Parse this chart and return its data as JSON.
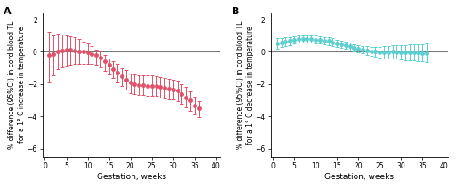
{
  "panel_A": {
    "label": "A",
    "ylabel": "% difference (95%CI) in cord blood TL\nfor a 1° C increase in temperature",
    "xlabel": "Gestation, weeks",
    "color": "#E05068",
    "x": [
      1,
      2,
      3,
      4,
      5,
      6,
      7,
      8,
      9,
      10,
      11,
      12,
      13,
      14,
      15,
      16,
      17,
      18,
      19,
      20,
      21,
      22,
      23,
      24,
      25,
      26,
      27,
      28,
      29,
      30,
      31,
      32,
      33,
      34,
      35,
      36
    ],
    "y": [
      -0.18,
      -0.12,
      0.05,
      0.1,
      0.12,
      0.12,
      0.1,
      0.05,
      0.0,
      -0.05,
      -0.12,
      -0.22,
      -0.38,
      -0.58,
      -0.82,
      -1.05,
      -1.28,
      -1.52,
      -1.72,
      -1.92,
      -2.02,
      -2.06,
      -2.07,
      -2.1,
      -2.1,
      -2.12,
      -2.2,
      -2.25,
      -2.3,
      -2.35,
      -2.42,
      -2.62,
      -2.82,
      -3.02,
      -3.32,
      -3.52
    ],
    "err_upper": [
      1.4,
      1.15,
      1.05,
      0.95,
      0.9,
      0.85,
      0.8,
      0.75,
      0.65,
      0.58,
      0.48,
      0.38,
      0.38,
      0.38,
      0.42,
      0.48,
      0.52,
      0.52,
      0.57,
      0.58,
      0.62,
      0.62,
      0.62,
      0.62,
      0.62,
      0.62,
      0.62,
      0.62,
      0.62,
      0.62,
      0.62,
      0.62,
      0.62,
      0.58,
      0.52,
      0.48
    ],
    "err_lower": [
      1.7,
      1.35,
      1.15,
      1.05,
      0.95,
      0.9,
      0.85,
      0.8,
      0.75,
      0.7,
      0.65,
      0.6,
      0.6,
      0.6,
      0.58,
      0.58,
      0.62,
      0.62,
      0.62,
      0.62,
      0.62,
      0.62,
      0.62,
      0.62,
      0.62,
      0.62,
      0.62,
      0.62,
      0.62,
      0.62,
      0.62,
      0.62,
      0.62,
      0.62,
      0.58,
      0.52
    ],
    "ylim": [
      -6.5,
      2.4
    ],
    "yticks": [
      -6.0,
      -4.0,
      -2.0,
      0.0,
      2.0
    ],
    "xticks": [
      0,
      5,
      10,
      15,
      20,
      25,
      30,
      35,
      40
    ],
    "xlim": [
      -0.5,
      41
    ]
  },
  "panel_B": {
    "label": "B",
    "ylabel": "% difference (95%CI) in cord blood TL\nfor a 1° C decrease in temperature",
    "xlabel": "Gestation, weeks",
    "color": "#5BCFCF",
    "x": [
      1,
      2,
      3,
      4,
      5,
      6,
      7,
      8,
      9,
      10,
      11,
      12,
      13,
      14,
      15,
      16,
      17,
      18,
      19,
      20,
      21,
      22,
      23,
      24,
      25,
      26,
      27,
      28,
      29,
      30,
      31,
      32,
      33,
      34,
      35,
      36
    ],
    "y": [
      0.52,
      0.58,
      0.63,
      0.68,
      0.73,
      0.78,
      0.8,
      0.8,
      0.78,
      0.76,
      0.73,
      0.7,
      0.66,
      0.6,
      0.53,
      0.46,
      0.4,
      0.33,
      0.26,
      0.2,
      0.13,
      0.08,
      0.03,
      0.0,
      -0.02,
      -0.03,
      -0.01,
      0.0,
      -0.01,
      -0.01,
      -0.04,
      -0.04,
      -0.04,
      -0.04,
      -0.06,
      -0.06
    ],
    "err_upper": [
      0.32,
      0.28,
      0.26,
      0.25,
      0.23,
      0.23,
      0.23,
      0.23,
      0.23,
      0.23,
      0.23,
      0.23,
      0.23,
      0.23,
      0.23,
      0.23,
      0.23,
      0.23,
      0.23,
      0.23,
      0.23,
      0.26,
      0.28,
      0.3,
      0.33,
      0.36,
      0.38,
      0.4,
      0.42,
      0.44,
      0.46,
      0.48,
      0.5,
      0.52,
      0.54,
      0.58
    ],
    "err_lower": [
      0.32,
      0.28,
      0.26,
      0.25,
      0.23,
      0.23,
      0.23,
      0.23,
      0.23,
      0.23,
      0.23,
      0.23,
      0.23,
      0.23,
      0.23,
      0.23,
      0.23,
      0.23,
      0.23,
      0.23,
      0.23,
      0.26,
      0.28,
      0.3,
      0.33,
      0.36,
      0.38,
      0.4,
      0.42,
      0.44,
      0.46,
      0.48,
      0.5,
      0.52,
      0.54,
      0.58
    ],
    "ylim": [
      -6.5,
      2.4
    ],
    "yticks": [
      -6.0,
      -4.0,
      -2.0,
      0.0,
      2.0
    ],
    "xticks": [
      0,
      5,
      10,
      15,
      20,
      25,
      30,
      35,
      40
    ],
    "xlim": [
      -0.5,
      41
    ]
  },
  "background_color": "#ffffff",
  "refline_color": "#777777",
  "marker_size": 2.5,
  "capsize": 1.5,
  "elinewidth": 0.7,
  "capthick": 0.7,
  "ylabel_fontsize": 5.5,
  "xlabel_fontsize": 6.5,
  "tick_fontsize": 5.5,
  "panel_label_fontsize": 8
}
